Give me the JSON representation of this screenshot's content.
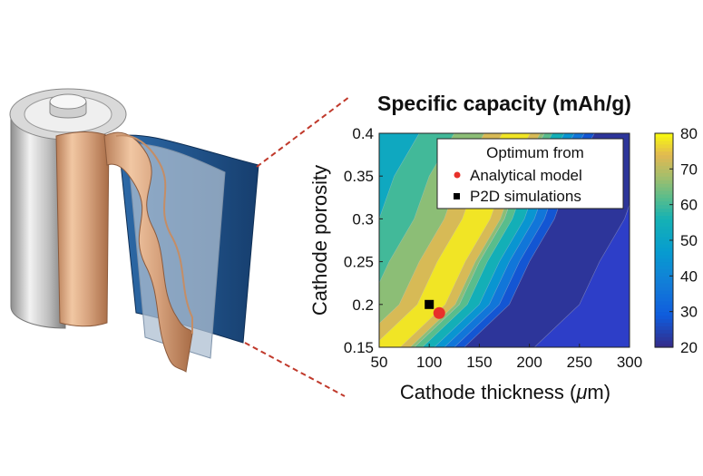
{
  "colors": {
    "battery_shell": "#c9c9c9",
    "copper_foil": "#d8a47f",
    "separator": "#9aaec4",
    "aluminum_foil": "#1f4f86",
    "connector_line": "#c0392b",
    "analytical_marker": "#e8302a",
    "p2d_marker": "#000000"
  },
  "chart_data": {
    "type": "heatmap",
    "title": "Specific capacity (mAh/g)",
    "xlabel": "Cathode thickness (",
    "xlabel_mu": "μ",
    "xlabel_unit": "m)",
    "ylabel": "Cathode porosity",
    "xlim": [
      50,
      300
    ],
    "ylim": [
      0.15,
      0.4
    ],
    "x_ticks": [
      "50",
      "100",
      "150",
      "200",
      "250",
      "300"
    ],
    "y_ticks": [
      "0.15",
      "0.2",
      "0.25",
      "0.3",
      "0.35",
      "0.4"
    ],
    "colorbar": {
      "range": [
        20,
        80
      ],
      "ticks": [
        "20",
        "30",
        "40",
        "50",
        "60",
        "70",
        "80"
      ],
      "colormap": "parula"
    },
    "ridge_points": [
      {
        "x": 55,
        "y": 0.15
      },
      {
        "x": 100,
        "y": 0.2
      },
      {
        "x": 120,
        "y": 0.25
      },
      {
        "x": 145,
        "y": 0.3
      },
      {
        "x": 160,
        "y": 0.35
      },
      {
        "x": 185,
        "y": 0.4
      }
    ],
    "legend": {
      "header": "Optimum from",
      "entries": [
        {
          "name": "Analytical model",
          "marker": "circle",
          "color": "#e8302a"
        },
        {
          "name": "P2D simulations",
          "marker": "square",
          "color": "#000000"
        }
      ]
    },
    "points": [
      {
        "series": "Analytical model",
        "x": 110,
        "y": 0.19
      },
      {
        "series": "P2D simulations",
        "x": 100,
        "y": 0.2
      }
    ]
  }
}
